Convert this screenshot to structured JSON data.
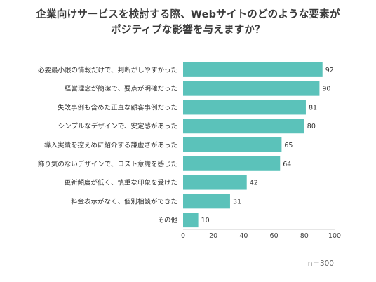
{
  "chart_data": {
    "type": "bar",
    "orientation": "horizontal",
    "title_lines": [
      "企業向けサービスを検討する際、Webサイトのどのような要素が",
      "ポジティブな影響を与えますか？"
    ],
    "categories": [
      "必要最小限の情報だけで、判断がしやすかった",
      "経営理念が簡潔で、要点が明確だった",
      "失敗事例も含めた正直な顧客事例だった",
      "シンプルなデザインで、安定感があった",
      "導入実績を控えめに紹介する謙虚さがあった",
      "飾り気のないデザインで、コスト意識を感じた",
      "更新頻度が低く、慎重な印象を受けた",
      "料金表示がなく、個別相談ができた",
      "その他"
    ],
    "values": [
      92,
      90,
      81,
      80,
      65,
      64,
      42,
      31,
      10
    ],
    "xlim": [
      0,
      100
    ],
    "xticks": [
      0,
      20,
      40,
      60,
      80,
      100
    ],
    "grid": false,
    "legend": "none",
    "bar_color": "#5bc2ba",
    "note": "n＝300"
  }
}
